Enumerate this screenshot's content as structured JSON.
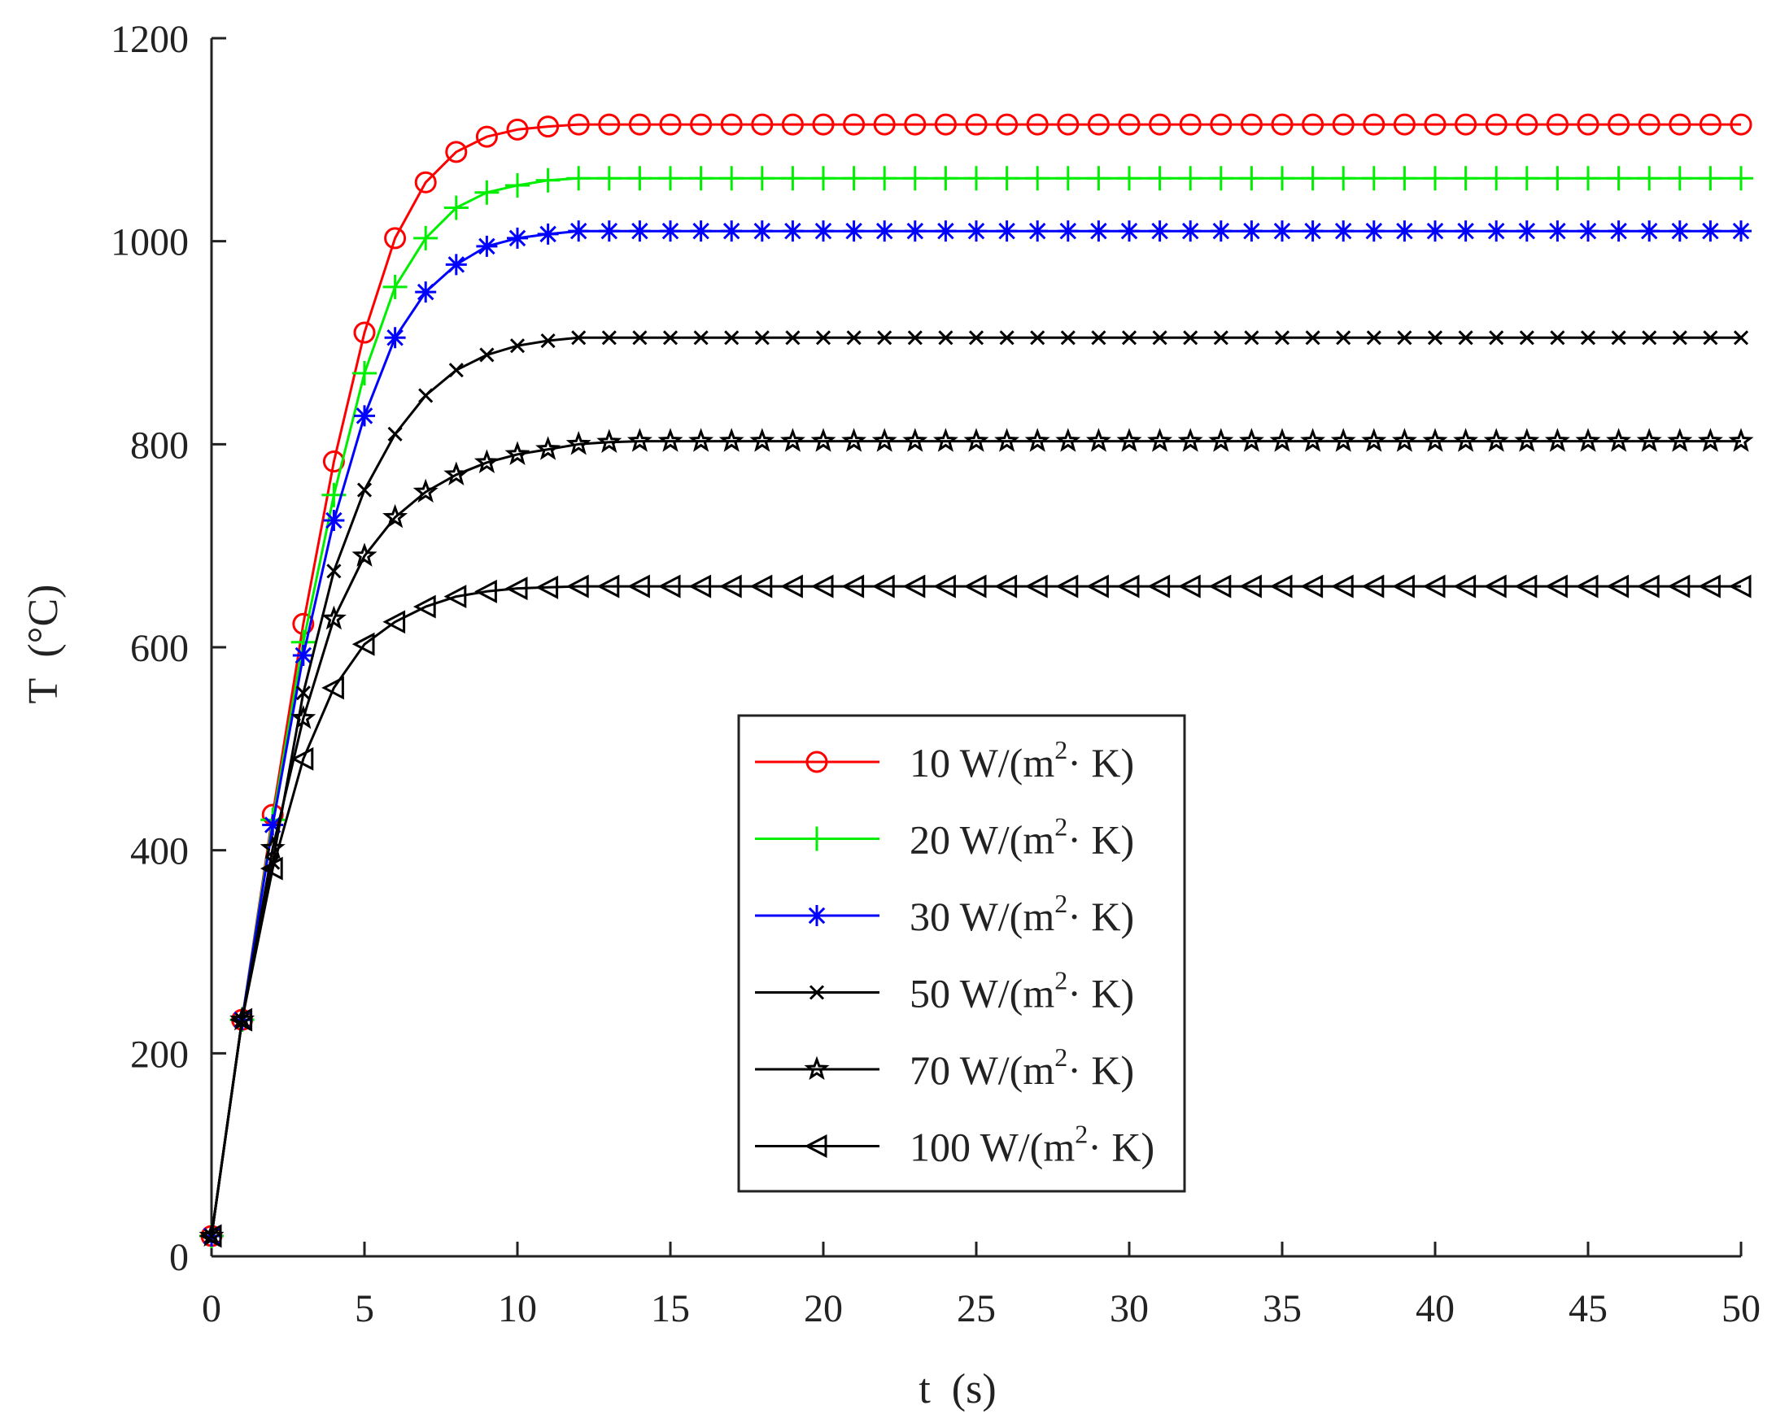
{
  "chart_data": {
    "type": "line",
    "title": "",
    "xlabel": "t  (s)",
    "ylabel": "T  (°C)",
    "xlim": [
      0,
      50
    ],
    "ylim": [
      0,
      1200
    ],
    "x_ticks": [
      0,
      5,
      10,
      15,
      20,
      25,
      30,
      35,
      40,
      45,
      50
    ],
    "y_ticks": [
      0,
      200,
      400,
      600,
      800,
      1000,
      1200
    ],
    "x": [
      0,
      1,
      2,
      3,
      4,
      5,
      6,
      7,
      8,
      9,
      10,
      11,
      12,
      13,
      14,
      15,
      16,
      17,
      18,
      19,
      20,
      21,
      22,
      23,
      24,
      25,
      26,
      27,
      28,
      29,
      30,
      31,
      32,
      33,
      34,
      35,
      36,
      37,
      38,
      39,
      40,
      41,
      42,
      43,
      44,
      45,
      46,
      47,
      48,
      49,
      50
    ],
    "legend_position": "center",
    "series": [
      {
        "name": "10 W/(m2· K)",
        "label_main": "10 W/(m",
        "label_sup": "2",
        "label_tail": "· K)",
        "color": "#ff0000",
        "marker": "circle",
        "values": [
          20,
          233,
          435,
          623,
          783,
          910,
          1003,
          1058,
          1088,
          1103,
          1110,
          1113,
          1115,
          1115,
          1115,
          1115,
          1115,
          1115,
          1115,
          1115,
          1115,
          1115,
          1115,
          1115,
          1115,
          1115,
          1115,
          1115,
          1115,
          1115,
          1115,
          1115,
          1115,
          1115,
          1115,
          1115,
          1115,
          1115,
          1115,
          1115,
          1115,
          1115,
          1115,
          1115,
          1115,
          1115,
          1115,
          1115,
          1115,
          1115,
          1115
        ]
      },
      {
        "name": "20 W/(m2· K)",
        "label_main": "20 W/(m",
        "label_sup": "2",
        "label_tail": "· K)",
        "color": "#00ee00",
        "marker": "plus",
        "values": [
          20,
          233,
          430,
          605,
          750,
          870,
          955,
          1003,
          1033,
          1048,
          1055,
          1060,
          1062,
          1062,
          1062,
          1062,
          1062,
          1062,
          1062,
          1062,
          1062,
          1062,
          1062,
          1062,
          1062,
          1062,
          1062,
          1062,
          1062,
          1062,
          1062,
          1062,
          1062,
          1062,
          1062,
          1062,
          1062,
          1062,
          1062,
          1062,
          1062,
          1062,
          1062,
          1062,
          1062,
          1062,
          1062,
          1062,
          1062,
          1062,
          1062
        ]
      },
      {
        "name": "30 W/(m2· K)",
        "label_main": "30 W/(m",
        "label_sup": "2",
        "label_tail": "· K)",
        "color": "#0000ff",
        "marker": "asterisk",
        "values": [
          20,
          233,
          425,
          592,
          725,
          828,
          905,
          950,
          977,
          995,
          1003,
          1007,
          1010,
          1010,
          1010,
          1010,
          1010,
          1010,
          1010,
          1010,
          1010,
          1010,
          1010,
          1010,
          1010,
          1010,
          1010,
          1010,
          1010,
          1010,
          1010,
          1010,
          1010,
          1010,
          1010,
          1010,
          1010,
          1010,
          1010,
          1010,
          1010,
          1010,
          1010,
          1010,
          1010,
          1010,
          1010,
          1010,
          1010,
          1010,
          1010
        ]
      },
      {
        "name": "50 W/(m2· K)",
        "label_main": "50 W/(m",
        "label_sup": "2",
        "label_tail": "· K)",
        "color": "#000000",
        "marker": "x",
        "values": [
          20,
          233,
          388,
          555,
          675,
          755,
          810,
          848,
          873,
          888,
          897,
          902,
          905,
          905,
          905,
          905,
          905,
          905,
          905,
          905,
          905,
          905,
          905,
          905,
          905,
          905,
          905,
          905,
          905,
          905,
          905,
          905,
          905,
          905,
          905,
          905,
          905,
          905,
          905,
          905,
          905,
          905,
          905,
          905,
          905,
          905,
          905,
          905,
          905,
          905,
          905
        ]
      },
      {
        "name": "70 W/(m2· K)",
        "label_main": "70 W/(m",
        "label_sup": "2",
        "label_tail": "· K)",
        "color": "#000000",
        "marker": "star",
        "values": [
          20,
          233,
          402,
          530,
          628,
          690,
          728,
          753,
          770,
          782,
          790,
          795,
          800,
          802,
          803,
          803,
          803,
          803,
          803,
          803,
          803,
          803,
          803,
          803,
          803,
          803,
          803,
          803,
          803,
          803,
          803,
          803,
          803,
          803,
          803,
          803,
          803,
          803,
          803,
          803,
          803,
          803,
          803,
          803,
          803,
          803,
          803,
          803,
          803,
          803,
          803
        ]
      },
      {
        "name": "100 W/(m2· K)",
        "label_main": "100 W/(m",
        "label_sup": "2",
        "label_tail": "· K)",
        "color": "#000000",
        "marker": "triangle-left",
        "values": [
          20,
          233,
          382,
          490,
          560,
          603,
          625,
          640,
          650,
          655,
          658,
          659,
          660,
          660,
          660,
          660,
          660,
          660,
          660,
          660,
          660,
          660,
          660,
          660,
          660,
          660,
          660,
          660,
          660,
          660,
          660,
          660,
          660,
          660,
          660,
          660,
          660,
          660,
          660,
          660,
          660,
          660,
          660,
          660,
          660,
          660,
          660,
          660,
          660,
          660,
          660
        ]
      }
    ]
  }
}
